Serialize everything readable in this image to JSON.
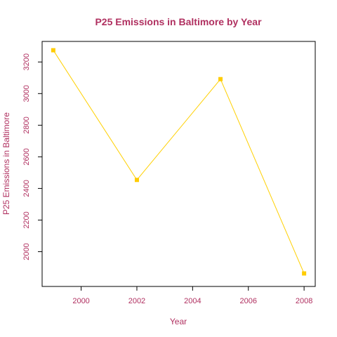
{
  "chart_data": {
    "type": "line",
    "title": "P25 Emissions in Baltimore by Year",
    "xlabel": "Year",
    "ylabel": "P25 Emissions in Baltimore",
    "x": [
      1999,
      2002,
      2005,
      2008
    ],
    "series": [
      {
        "values": [
          3274.2,
          2453.9,
          3091.4,
          1862.3
        ]
      }
    ],
    "xticks": [
      2000,
      2002,
      2004,
      2006,
      2008
    ],
    "yticks": [
      2000,
      2200,
      2400,
      2600,
      2800,
      3000,
      3200
    ],
    "xlim": [
      1998.6,
      2008.4
    ],
    "ylim": [
      1780,
      3330
    ],
    "grid": false,
    "colors": {
      "line": "#FFD000",
      "marker": "#FFCC00",
      "text": "#B03060",
      "axes": "#000000"
    }
  }
}
